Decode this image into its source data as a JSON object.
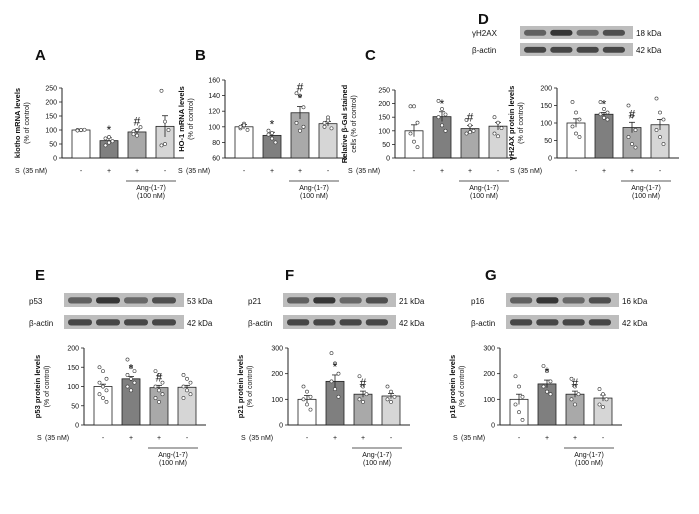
{
  "treatment": {
    "s_label": "S",
    "s_unit": "(35 nM)",
    "s_signs": [
      "-",
      "+",
      "+",
      "-"
    ],
    "ang_signs": [
      "-",
      "-",
      "+",
      "+"
    ],
    "ang_label": "Ang-(1-7)",
    "ang_unit": "(100 nM)"
  },
  "bar_colors": [
    "#ffffff",
    "#7f7f7f",
    "#a9a9a9",
    "#d6d6d6"
  ],
  "chart_data": [
    {
      "id": "A",
      "type": "bar",
      "title": "A",
      "ylabel": "klotho mRNA levels",
      "ylabel2": "(% of control)",
      "ylim": [
        0,
        250
      ],
      "yticks": [
        0,
        50,
        100,
        150,
        200,
        250
      ],
      "values": [
        100,
        62,
        93,
        113
      ],
      "errors": [
        3,
        10,
        8,
        38
      ],
      "marks": [
        "",
        "*",
        "#",
        ""
      ],
      "points": [
        [
          100,
          99,
          101,
          98,
          100
        ],
        [
          70,
          55,
          60,
          45,
          75
        ],
        [
          95,
          100,
          110,
          85,
          80
        ],
        [
          240,
          130,
          100,
          45,
          50
        ]
      ]
    },
    {
      "id": "B",
      "type": "bar",
      "title": "B",
      "ylabel": "HO-1 mRNA levels",
      "ylabel2": "(% of control)",
      "ylim": [
        60,
        160
      ],
      "yticks": [
        60,
        80,
        100,
        120,
        140,
        160
      ],
      "values": [
        100,
        89,
        118,
        104
      ],
      "errors": [
        3,
        4,
        8,
        3
      ],
      "marks": [
        "",
        "*",
        "*#",
        ""
      ],
      "points": [
        [
          98,
          104,
          96,
          100,
          102
        ],
        [
          95,
          85,
          80,
          90,
          92
        ],
        [
          143,
          140,
          125,
          105,
          95,
          100
        ],
        [
          105,
          112,
          98,
          100,
          108
        ]
      ]
    },
    {
      "id": "C",
      "type": "bar",
      "title": "C",
      "ylabel": "Relative β-Gal stained",
      "ylabel2": "cells (% of control)",
      "ylim": [
        0,
        250
      ],
      "yticks": [
        0,
        50,
        100,
        150,
        200,
        250
      ],
      "values": [
        100,
        152,
        108,
        117
      ],
      "errors": [
        22,
        18,
        12,
        14
      ],
      "marks": [
        "",
        "*",
        "#",
        ""
      ],
      "points": [
        [
          190,
          190,
          130,
          90,
          60,
          40
        ],
        [
          210,
          180,
          160,
          150,
          120,
          100
        ],
        [
          140,
          120,
          100,
          90,
          95
        ],
        [
          150,
          130,
          110,
          90,
          80
        ]
      ]
    },
    {
      "id": "D",
      "type": "bar",
      "title": "D",
      "ylabel": "γH2AX protein levels",
      "ylabel2": "(% of control)",
      "ylim": [
        0,
        200
      ],
      "yticks": [
        0,
        50,
        100,
        150,
        200
      ],
      "values": [
        100,
        125,
        87,
        95
      ],
      "errors": [
        12,
        5,
        15,
        15
      ],
      "marks": [
        "",
        "*",
        "#",
        ""
      ],
      "points": [
        [
          160,
          130,
          110,
          90,
          70,
          60
        ],
        [
          160,
          140,
          130,
          125,
          115,
          110
        ],
        [
          150,
          120,
          80,
          60,
          40,
          30
        ],
        [
          170,
          130,
          110,
          80,
          60,
          40
        ]
      ]
    },
    {
      "id": "E",
      "type": "bar",
      "title": "E",
      "ylabel": "p53 protein levels",
      "ylabel2": "(% of control)",
      "ylim": [
        0,
        200
      ],
      "yticks": [
        0,
        50,
        100,
        150,
        200
      ],
      "values": [
        100,
        120,
        97,
        98
      ],
      "errors": [
        6,
        6,
        6,
        5
      ],
      "marks": [
        "",
        "*",
        "#",
        ""
      ],
      "points": [
        [
          150,
          140,
          120,
          110,
          100,
          90,
          80,
          70,
          60
        ],
        [
          170,
          150,
          140,
          130,
          120,
          110,
          100,
          90
        ],
        [
          140,
          130,
          110,
          100,
          90,
          80,
          70,
          60
        ],
        [
          130,
          120,
          110,
          100,
          90,
          80,
          70
        ]
      ]
    },
    {
      "id": "F",
      "type": "bar",
      "title": "F",
      "ylabel": "p21 protein levels",
      "ylabel2": "(% of control)",
      "ylim": [
        0,
        300
      ],
      "yticks": [
        0,
        100,
        200,
        300
      ],
      "values": [
        100,
        170,
        120,
        113
      ],
      "errors": [
        15,
        25,
        12,
        10
      ],
      "marks": [
        "",
        "*",
        "#",
        ""
      ],
      "points": [
        [
          150,
          130,
          110,
          100,
          80,
          60
        ],
        [
          280,
          240,
          200,
          170,
          140,
          110
        ],
        [
          190,
          150,
          120,
          100,
          90
        ],
        [
          150,
          130,
          110,
          100,
          90
        ]
      ]
    },
    {
      "id": "G",
      "type": "bar",
      "title": "G",
      "ylabel": "p16 protein levels",
      "ylabel2": "(% of control)",
      "ylim": [
        0,
        300
      ],
      "yticks": [
        0,
        100,
        200,
        300
      ],
      "values": [
        100,
        160,
        120,
        105
      ],
      "errors": [
        20,
        15,
        12,
        12
      ],
      "marks": [
        "",
        "*",
        "#",
        ""
      ],
      "points": [
        [
          190,
          150,
          110,
          80,
          50,
          20
        ],
        [
          230,
          210,
          170,
          150,
          130,
          120
        ],
        [
          180,
          150,
          120,
          100,
          80
        ],
        [
          140,
          120,
          100,
          80,
          70
        ]
      ]
    }
  ],
  "blots": [
    {
      "id": "D",
      "rows": [
        {
          "name": "γH2AX",
          "kda": "18 kDa"
        },
        {
          "name": "β-actin",
          "kda": "42 kDa"
        }
      ]
    },
    {
      "id": "E",
      "rows": [
        {
          "name": "p53",
          "kda": "53 kDa"
        },
        {
          "name": "β-actin",
          "kda": "42 kDa"
        }
      ]
    },
    {
      "id": "F",
      "rows": [
        {
          "name": "p21",
          "kda": "21 kDa"
        },
        {
          "name": "β-actin",
          "kda": "42 kDa"
        }
      ]
    },
    {
      "id": "G",
      "rows": [
        {
          "name": "p16",
          "kda": "16 kDa"
        },
        {
          "name": "β-actin",
          "kda": "42 kDa"
        }
      ]
    }
  ]
}
